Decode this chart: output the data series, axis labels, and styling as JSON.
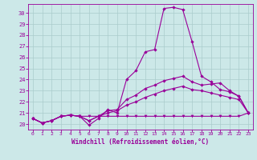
{
  "xlabel": "Windchill (Refroidissement éolien,°C)",
  "background_color": "#cce8e8",
  "grid_color": "#aacccc",
  "line_color": "#990099",
  "xlim": [
    -0.5,
    23.5
  ],
  "ylim": [
    19.5,
    30.8
  ],
  "xticks": [
    0,
    1,
    2,
    3,
    4,
    5,
    6,
    7,
    8,
    9,
    10,
    11,
    12,
    13,
    14,
    15,
    16,
    17,
    18,
    19,
    20,
    21,
    22,
    23
  ],
  "yticks": [
    20,
    21,
    22,
    23,
    24,
    25,
    26,
    27,
    28,
    29,
    30
  ],
  "line1_y": [
    20.5,
    20.1,
    20.3,
    20.7,
    20.8,
    20.7,
    19.9,
    20.5,
    21.3,
    21.0,
    24.0,
    24.8,
    26.5,
    26.7,
    30.4,
    30.5,
    30.3,
    27.4,
    24.3,
    23.8,
    23.1,
    22.9,
    22.5,
    21.0
  ],
  "line2_y": [
    20.5,
    20.1,
    20.3,
    20.7,
    20.8,
    20.7,
    20.7,
    20.7,
    20.7,
    20.7,
    20.7,
    20.7,
    20.7,
    20.7,
    20.7,
    20.7,
    20.7,
    20.7,
    20.7,
    20.7,
    20.7,
    20.7,
    20.7,
    21.0
  ],
  "line3_y": [
    20.5,
    20.1,
    20.3,
    20.7,
    20.8,
    20.7,
    20.3,
    20.7,
    21.2,
    21.3,
    22.2,
    22.6,
    23.2,
    23.5,
    23.9,
    24.1,
    24.3,
    23.8,
    23.5,
    23.6,
    23.7,
    23.0,
    22.5,
    21.0
  ],
  "line4_y": [
    20.5,
    20.1,
    20.3,
    20.7,
    20.8,
    20.7,
    20.3,
    20.7,
    21.0,
    21.2,
    21.7,
    22.0,
    22.4,
    22.7,
    23.0,
    23.2,
    23.4,
    23.1,
    23.0,
    22.8,
    22.6,
    22.4,
    22.2,
    21.0
  ]
}
